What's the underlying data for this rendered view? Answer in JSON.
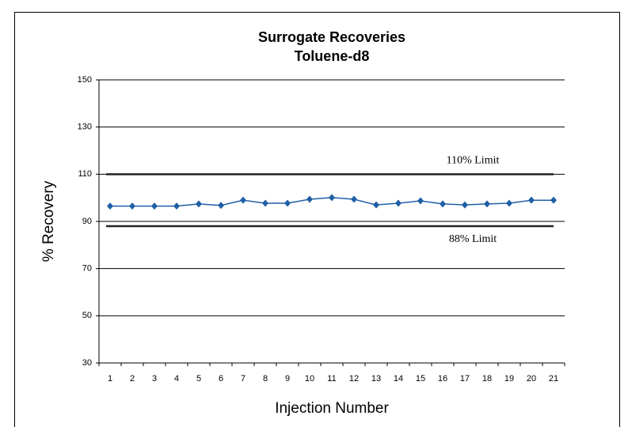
{
  "chart_data": {
    "type": "line",
    "title": "Surrogate Recoveries",
    "subtitle": "Toluene-d8",
    "x_label": "Injection Number",
    "y_label": "% Recovery",
    "categories": [
      1,
      2,
      3,
      4,
      5,
      6,
      7,
      8,
      9,
      10,
      11,
      12,
      13,
      14,
      15,
      16,
      17,
      18,
      19,
      20,
      21
    ],
    "series": [
      {
        "color": "#1f5fa6",
        "values": [
          96.5,
          96.5,
          96.5,
          96.5,
          97.4,
          96.8,
          99.0,
          97.7,
          97.7,
          99.4,
          100.1,
          99.4,
          97.0,
          97.7,
          98.7,
          97.4,
          97.0,
          97.4,
          97.7,
          99.0,
          99.0
        ]
      }
    ],
    "limits": [
      {
        "label": "110% Limit",
        "value": 110
      },
      {
        "label": "88% Limit",
        "value": 88
      }
    ],
    "ylim": [
      30,
      150
    ],
    "yticks": [
      30,
      50,
      70,
      90,
      110,
      130,
      150
    ],
    "grid": true
  }
}
